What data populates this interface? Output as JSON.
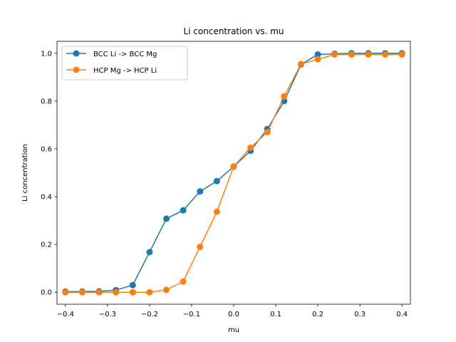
{
  "chart_data": {
    "type": "line",
    "title": "Li concentration vs. mu",
    "xlabel": "mu",
    "ylabel": "Li concentration",
    "xlim": [
      -0.42,
      0.42
    ],
    "ylim": [
      -0.05,
      1.05
    ],
    "xticks": [
      -0.4,
      -0.3,
      -0.2,
      -0.1,
      0.0,
      0.1,
      0.2,
      0.3,
      0.4
    ],
    "xtick_labels": [
      "−0.4",
      "−0.3",
      "−0.2",
      "−0.1",
      "0.0",
      "0.1",
      "0.2",
      "0.3",
      "0.4"
    ],
    "yticks": [
      0.0,
      0.2,
      0.4,
      0.6,
      0.8,
      1.0
    ],
    "ytick_labels": [
      "0.0",
      "0.2",
      "0.4",
      "0.6",
      "0.8",
      "1.0"
    ],
    "grid": false,
    "legend_position": "upper-left",
    "x": [
      -0.4,
      -0.36,
      -0.32,
      -0.28,
      -0.24,
      -0.2,
      -0.16,
      -0.12,
      -0.08,
      -0.04,
      0.0,
      0.04,
      0.08,
      0.12,
      0.16,
      0.2,
      0.24,
      0.28,
      0.32,
      0.36,
      0.4
    ],
    "series": [
      {
        "name": "BCC Li -> BCC Mg",
        "color": "#1f77b4",
        "values": [
          0.003,
          0.003,
          0.004,
          0.009,
          0.03,
          0.168,
          0.308,
          0.343,
          0.422,
          0.465,
          0.526,
          0.592,
          0.683,
          0.8,
          0.953,
          0.995,
          0.998,
          1.0,
          1.0,
          1.0,
          1.0
        ]
      },
      {
        "name": "HCP Mg -> HCP Li",
        "color": "#ff7f0e",
        "values": [
          0.0,
          0.0,
          0.0,
          0.0,
          0.0,
          0.0,
          0.01,
          0.045,
          0.19,
          0.337,
          0.526,
          0.605,
          0.67,
          0.82,
          0.955,
          0.975,
          0.995,
          0.995,
          0.995,
          0.995,
          0.995
        ]
      }
    ]
  }
}
